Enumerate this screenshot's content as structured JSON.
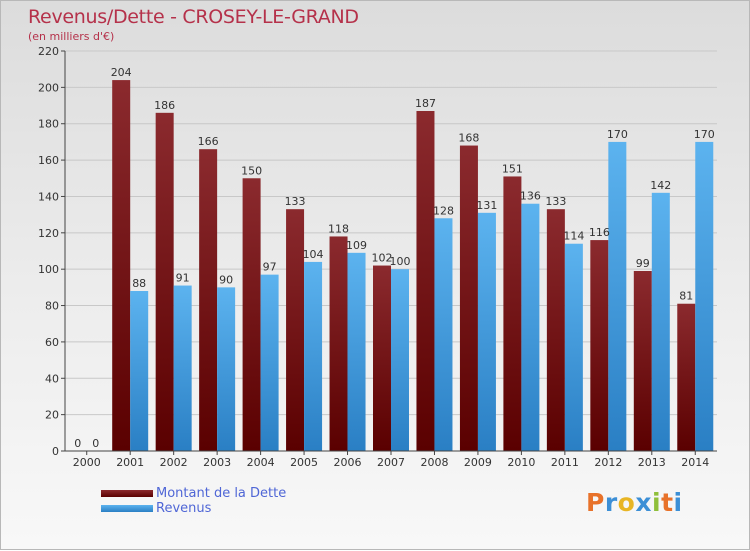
{
  "title": "Revenus/Dette - CROSEY-LE-GRAND",
  "subtitle": "(en milliers d'€)",
  "logo_text": "Proxiti",
  "colors": {
    "dette": "#7a1a1f",
    "revenus": "#3b9be0",
    "title": "#b5314a",
    "legend_text": "#4f66d6"
  },
  "chart_data": {
    "type": "bar",
    "title": "Revenus/Dette - CROSEY-LE-GRAND",
    "ylabel": "(en milliers d'€)",
    "xlabel": "",
    "ylim": [
      0,
      220
    ],
    "yticks": [
      0,
      20,
      40,
      60,
      80,
      100,
      120,
      140,
      160,
      180,
      200,
      220
    ],
    "grid": true,
    "legend_position": "bottom-left",
    "categories": [
      "2000",
      "2001",
      "2002",
      "2003",
      "2004",
      "2005",
      "2006",
      "2007",
      "2008",
      "2009",
      "2010",
      "2011",
      "2012",
      "2013",
      "2014"
    ],
    "series": [
      {
        "name": "Montant de la Dette",
        "values": [
          0,
          204,
          186,
          166,
          150,
          133,
          118,
          102,
          187,
          168,
          151,
          133,
          116,
          99,
          81
        ]
      },
      {
        "name": "Revenus",
        "values": [
          0,
          88,
          91,
          90,
          97,
          104,
          109,
          100,
          128,
          131,
          136,
          114,
          170,
          142,
          170
        ]
      }
    ]
  }
}
